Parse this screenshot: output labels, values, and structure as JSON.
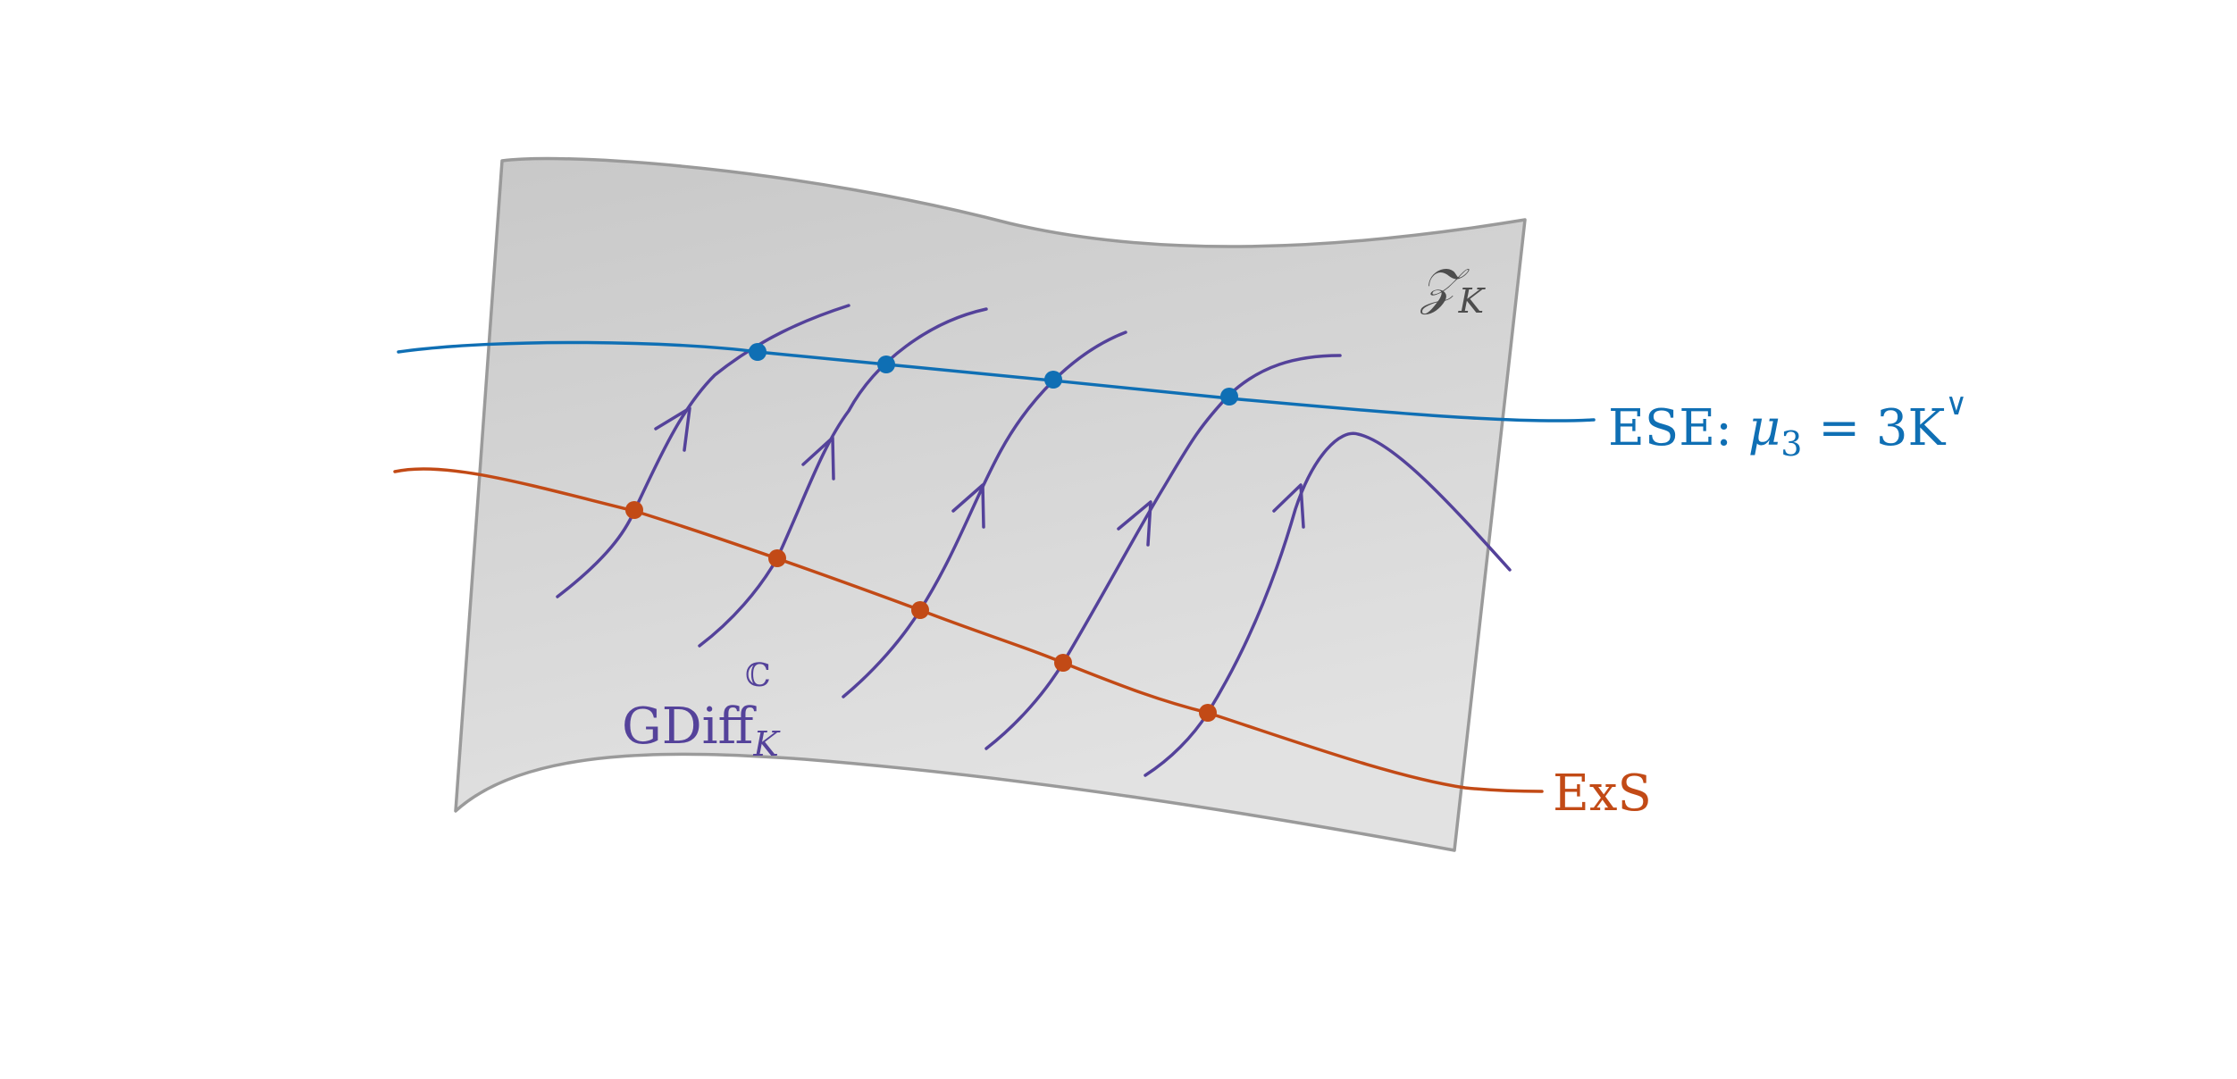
{
  "diagram": {
    "surface": {
      "label": "𝒵",
      "label_sub": "K",
      "fill_top": "#c8c8c8",
      "fill_bottom": "#e2e2e2",
      "stroke": "#9a9a9a"
    },
    "ese_curve": {
      "label_prefix": "ESE: ",
      "label_mu": "μ",
      "label_mu_sub": "3",
      "label_rest": " = 3K",
      "label_sup": "∨",
      "color": "#0f6fb4"
    },
    "exs_curve": {
      "label": "ExS",
      "color": "#c24a16"
    },
    "flow_lines": {
      "label": "GDiff",
      "label_sub": "K",
      "label_sup": "ℂ",
      "color": "#54429a"
    }
  }
}
